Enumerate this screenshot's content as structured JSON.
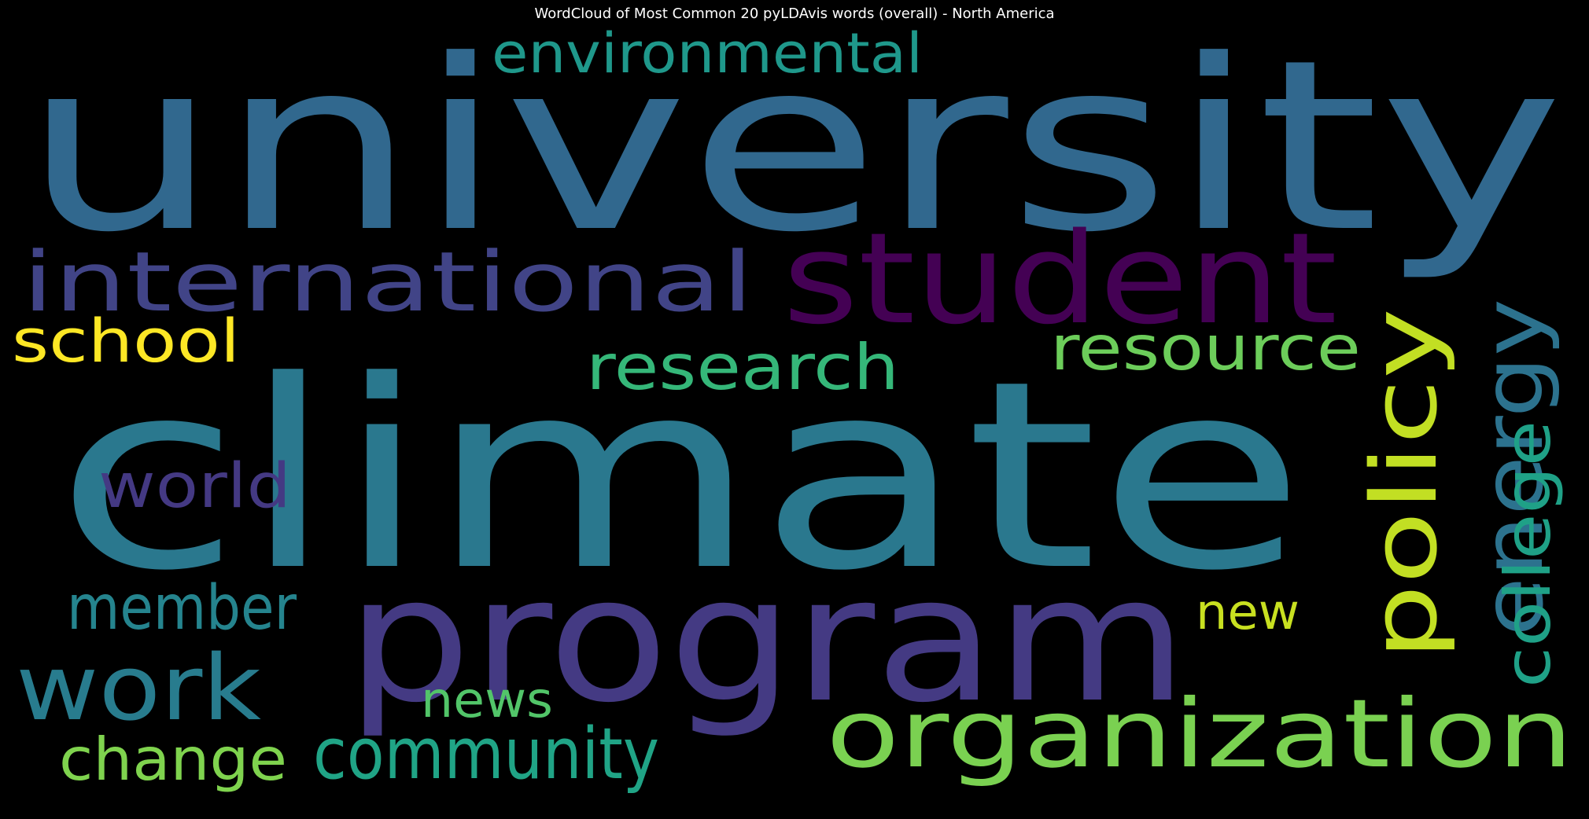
{
  "chart_data": {
    "type": "wordcloud",
    "title": "WordCloud of Most Common 20 pyLDAvis words (overall) - North America",
    "background": "#000000",
    "colormap": "viridis",
    "words": [
      {
        "text": "university",
        "color": "#31688e"
      },
      {
        "text": "climate",
        "color": "#2a788e"
      },
      {
        "text": "program",
        "color": "#443a83"
      },
      {
        "text": "student",
        "color": "#440154"
      },
      {
        "text": "organization",
        "color": "#7ad151"
      },
      {
        "text": "international",
        "color": "#414487"
      },
      {
        "text": "environmental",
        "color": "#1f988b"
      },
      {
        "text": "policy",
        "color": "#c2df23"
      },
      {
        "text": "energy",
        "color": "#2c728e"
      },
      {
        "text": "research",
        "color": "#35b779"
      },
      {
        "text": "resource",
        "color": "#6ccd5a"
      },
      {
        "text": "work",
        "color": "#287c8e"
      },
      {
        "text": "school",
        "color": "#fde725"
      },
      {
        "text": "world",
        "color": "#443983"
      },
      {
        "text": "member",
        "color": "#25848e"
      },
      {
        "text": "college",
        "color": "#1fa187"
      },
      {
        "text": "community",
        "color": "#20a486"
      },
      {
        "text": "change",
        "color": "#7fd34e"
      },
      {
        "text": "news",
        "color": "#52c569"
      },
      {
        "text": "new",
        "color": "#c8e020"
      }
    ]
  }
}
